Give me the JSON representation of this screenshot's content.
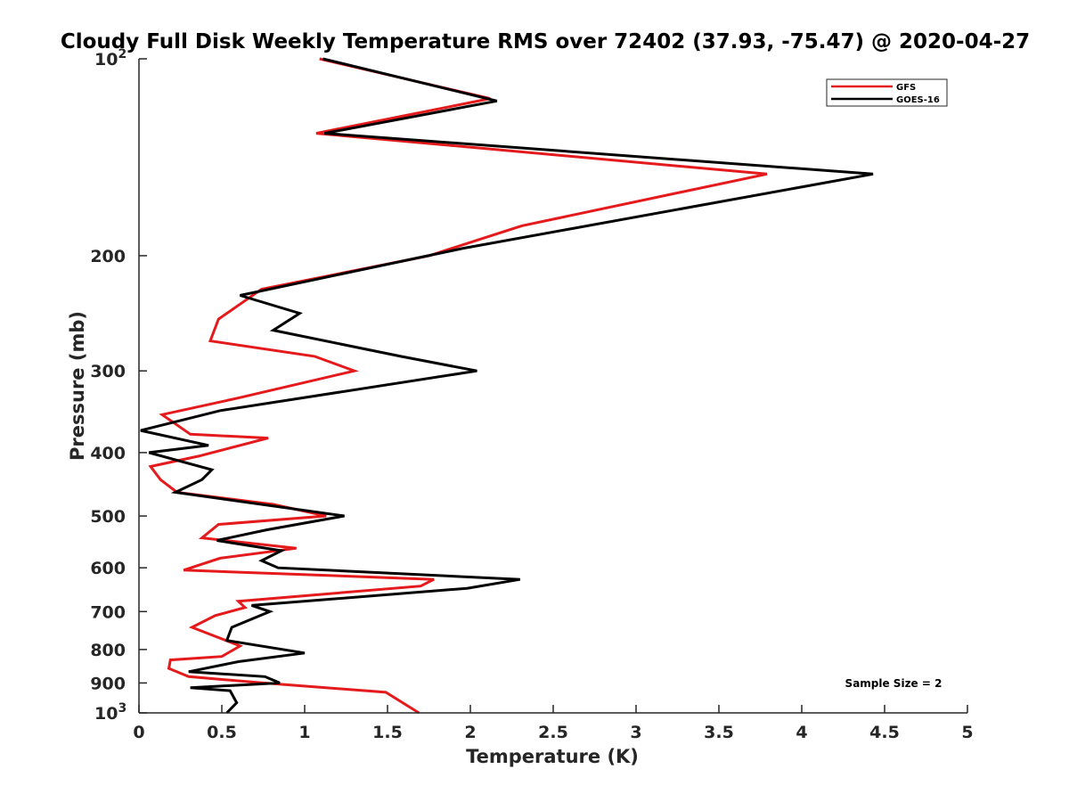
{
  "chart_data": {
    "type": "line",
    "title": "Cloudy Full Disk Weekly Temperature RMS over 72402 (37.93, -75.47) @ 2020-04-27",
    "xlabel": "Temperature (K)",
    "ylabel": "Pressure (mb)",
    "xlim": [
      0,
      5
    ],
    "ylim": [
      100,
      1000
    ],
    "y_scale": "log",
    "y_reversed": true,
    "x_ticks": [
      0,
      0.5,
      1,
      1.5,
      2,
      2.5,
      3,
      3.5,
      4,
      4.5,
      5
    ],
    "x_tick_labels": [
      "0",
      "0.5",
      "1",
      "1.5",
      "2",
      "2.5",
      "3",
      "3.5",
      "4",
      "4.5",
      "5"
    ],
    "y_ticks": [
      100,
      200,
      300,
      400,
      500,
      600,
      700,
      800,
      900,
      1000
    ],
    "y_tick_labels": [
      {
        "base": "10",
        "exp": "2"
      },
      {
        "base": "200",
        "exp": ""
      },
      {
        "base": "300",
        "exp": ""
      },
      {
        "base": "400",
        "exp": ""
      },
      {
        "base": "500",
        "exp": ""
      },
      {
        "base": "600",
        "exp": ""
      },
      {
        "base": "700",
        "exp": ""
      },
      {
        "base": "800",
        "exp": ""
      },
      {
        "base": "900",
        "exp": ""
      },
      {
        "base": "10",
        "exp": "3"
      }
    ],
    "grid": false,
    "legend_position": "top-right",
    "annotation": "Sample Size = 2",
    "series": [
      {
        "name": "GFS",
        "color": "#e41a1c",
        "points": [
          [
            1.09,
            100
          ],
          [
            2.12,
            115
          ],
          [
            1.07,
            130
          ],
          [
            3.79,
            150
          ],
          [
            2.31,
            180
          ],
          [
            1.75,
            200
          ],
          [
            0.74,
            225
          ],
          [
            0.48,
            250
          ],
          [
            0.43,
            270
          ],
          [
            1.06,
            285
          ],
          [
            1.3,
            300
          ],
          [
            0.6,
            330
          ],
          [
            0.14,
            350
          ],
          [
            0.31,
            375
          ],
          [
            0.78,
            380
          ],
          [
            0.36,
            405
          ],
          [
            0.07,
            420
          ],
          [
            0.13,
            440
          ],
          [
            0.23,
            460
          ],
          [
            0.81,
            480
          ],
          [
            1.13,
            500
          ],
          [
            0.48,
            515
          ],
          [
            0.38,
            540
          ],
          [
            0.95,
            560
          ],
          [
            0.49,
            580
          ],
          [
            0.27,
            605
          ],
          [
            1.78,
            625
          ],
          [
            1.7,
            640
          ],
          [
            0.6,
            675
          ],
          [
            0.64,
            690
          ],
          [
            0.46,
            710
          ],
          [
            0.32,
            740
          ],
          [
            0.61,
            790
          ],
          [
            0.5,
            820
          ],
          [
            0.19,
            830
          ],
          [
            0.18,
            855
          ],
          [
            0.3,
            880
          ],
          [
            0.75,
            900
          ],
          [
            1.49,
            930
          ],
          [
            1.69,
            1000
          ]
        ]
      },
      {
        "name": "GOES-16",
        "color": "#000000",
        "points": [
          [
            1.11,
            100
          ],
          [
            2.16,
            116
          ],
          [
            1.12,
            130
          ],
          [
            4.43,
            150
          ],
          [
            1.95,
            195
          ],
          [
            0.61,
            230
          ],
          [
            0.97,
            245
          ],
          [
            0.81,
            260
          ],
          [
            1.58,
            285
          ],
          [
            2.04,
            300
          ],
          [
            0.49,
            345
          ],
          [
            0.01,
            370
          ],
          [
            0.42,
            390
          ],
          [
            0.06,
            400
          ],
          [
            0.44,
            425
          ],
          [
            0.38,
            440
          ],
          [
            0.22,
            460
          ],
          [
            1.24,
            500
          ],
          [
            0.77,
            525
          ],
          [
            0.47,
            545
          ],
          [
            0.86,
            565
          ],
          [
            0.74,
            585
          ],
          [
            0.84,
            600
          ],
          [
            2.3,
            625
          ],
          [
            1.98,
            645
          ],
          [
            0.68,
            685
          ],
          [
            0.79,
            700
          ],
          [
            0.56,
            740
          ],
          [
            0.53,
            775
          ],
          [
            1.0,
            810
          ],
          [
            0.6,
            835
          ],
          [
            0.3,
            865
          ],
          [
            0.76,
            880
          ],
          [
            0.85,
            900
          ],
          [
            0.31,
            915
          ],
          [
            0.55,
            925
          ],
          [
            0.59,
            965
          ],
          [
            0.53,
            1000
          ]
        ]
      }
    ]
  }
}
